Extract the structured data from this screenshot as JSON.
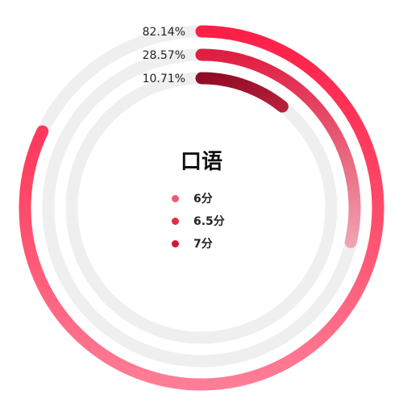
{
  "chart_data": {
    "type": "radial_bar",
    "title": "口语",
    "series": [
      {
        "name": "6分",
        "value": 82.14,
        "label": "82.14%",
        "color": "#ff3a57"
      },
      {
        "name": "6.5分",
        "value": 28.57,
        "label": "28.57%",
        "color": "#e0203f"
      },
      {
        "name": "7分",
        "value": 10.71,
        "label": "10.71%",
        "color": "#a0102a"
      }
    ],
    "max": 100,
    "track_color": "#efefef",
    "legend_position": "center"
  }
}
